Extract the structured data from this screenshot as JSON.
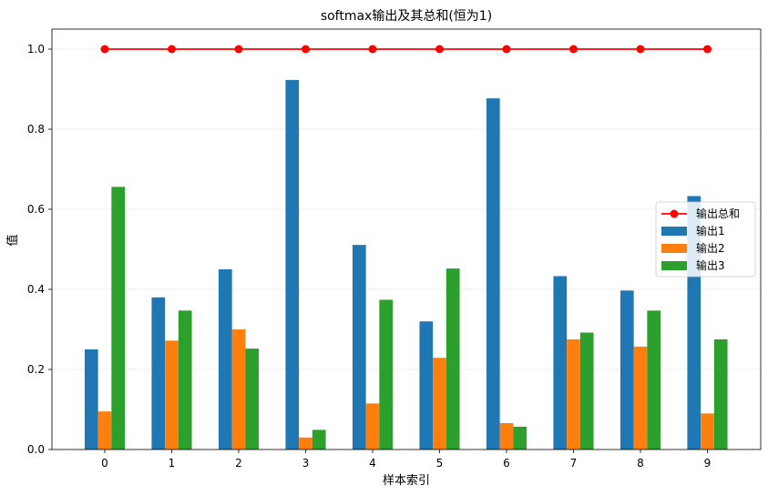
{
  "chart_data": {
    "type": "bar",
    "title": "softmax输出及其总和(恒为1)",
    "xlabel": "样本索引",
    "ylabel": "值",
    "categories": [
      "0",
      "1",
      "2",
      "3",
      "4",
      "5",
      "6",
      "7",
      "8",
      "9"
    ],
    "ylim": [
      0,
      1.05
    ],
    "yticks": [
      "0.0",
      "0.2",
      "0.4",
      "0.6",
      "0.8",
      "1.0"
    ],
    "grid": true,
    "legend_position": "center-right",
    "series": [
      {
        "name": "输出1",
        "kind": "bar",
        "color": "#1f77b4",
        "values": [
          0.25,
          0.38,
          0.45,
          0.923,
          0.511,
          0.32,
          0.877,
          0.433,
          0.397,
          0.633
        ]
      },
      {
        "name": "输出2",
        "kind": "bar",
        "color": "#ff7f0e",
        "values": [
          0.095,
          0.272,
          0.3,
          0.03,
          0.115,
          0.229,
          0.066,
          0.275,
          0.257,
          0.09
        ]
      },
      {
        "name": "输出3",
        "kind": "bar",
        "color": "#2ca02c",
        "values": [
          0.656,
          0.347,
          0.252,
          0.049,
          0.374,
          0.452,
          0.057,
          0.292,
          0.347,
          0.275
        ]
      },
      {
        "name": "输出总和",
        "kind": "line",
        "color": "#ff0000",
        "values": [
          1.0,
          1.0,
          1.0,
          1.0,
          1.0,
          1.0,
          1.0,
          1.0,
          1.0,
          1.0
        ]
      }
    ],
    "legend_order": [
      "输出总和",
      "输出1",
      "输出2",
      "输出3"
    ]
  }
}
